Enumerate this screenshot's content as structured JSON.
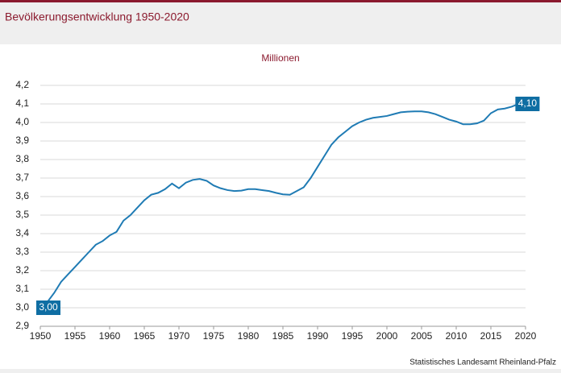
{
  "chart_data": {
    "type": "line",
    "title": "Bevölkerungsentwicklung 1950-2020",
    "subtitle": "Millionen",
    "source": "Statistisches Landesamt Rheinland-Pfalz",
    "x": [
      1950,
      1951,
      1952,
      1953,
      1954,
      1955,
      1956,
      1957,
      1958,
      1959,
      1960,
      1961,
      1962,
      1963,
      1964,
      1965,
      1966,
      1967,
      1968,
      1969,
      1970,
      1971,
      1972,
      1973,
      1974,
      1975,
      1976,
      1977,
      1978,
      1979,
      1980,
      1981,
      1982,
      1983,
      1984,
      1985,
      1986,
      1987,
      1988,
      1989,
      1990,
      1991,
      1992,
      1993,
      1994,
      1995,
      1996,
      1997,
      1998,
      1999,
      2000,
      2001,
      2002,
      2003,
      2004,
      2005,
      2006,
      2007,
      2008,
      2009,
      2010,
      2011,
      2012,
      2013,
      2014,
      2015,
      2016,
      2017,
      2018,
      2019
    ],
    "series": [
      {
        "color": "#1f7bb4",
        "values": [
          3.0,
          3.03,
          3.08,
          3.14,
          3.18,
          3.22,
          3.26,
          3.3,
          3.34,
          3.36,
          3.39,
          3.41,
          3.47,
          3.5,
          3.54,
          3.58,
          3.61,
          3.62,
          3.64,
          3.67,
          3.645,
          3.675,
          3.69,
          3.695,
          3.685,
          3.66,
          3.645,
          3.635,
          3.63,
          3.632,
          3.64,
          3.64,
          3.635,
          3.63,
          3.62,
          3.612,
          3.61,
          3.63,
          3.65,
          3.7,
          3.76,
          3.82,
          3.88,
          3.92,
          3.95,
          3.98,
          4.0,
          4.015,
          4.025,
          4.03,
          4.035,
          4.045,
          4.055,
          4.058,
          4.06,
          4.06,
          4.055,
          4.045,
          4.03,
          4.015,
          4.005,
          3.99,
          3.99,
          3.995,
          4.01,
          4.05,
          4.07,
          4.075,
          4.085,
          4.1
        ],
        "value_labels": [
          "3,00",
          null,
          null,
          null,
          null,
          null,
          null,
          null,
          null,
          null,
          null,
          null,
          null,
          null,
          null,
          null,
          null,
          null,
          null,
          null,
          null,
          null,
          null,
          null,
          null,
          null,
          null,
          null,
          null,
          null,
          null,
          null,
          null,
          null,
          null,
          null,
          null,
          null,
          null,
          null,
          null,
          null,
          null,
          null,
          null,
          null,
          null,
          null,
          null,
          null,
          null,
          null,
          null,
          null,
          null,
          null,
          null,
          null,
          null,
          null,
          null,
          null,
          null,
          null,
          null,
          null,
          null,
          null,
          null,
          "4,10"
        ]
      }
    ],
    "xlim": [
      1950,
      2020
    ],
    "xticks": [
      1950,
      1955,
      1960,
      1965,
      1970,
      1975,
      1980,
      1985,
      1990,
      1995,
      2000,
      2005,
      2010,
      2015,
      2020
    ],
    "ylim": [
      2.9,
      4.2
    ],
    "yticks": [
      {
        "value": 2.9,
        "label": "2,9"
      },
      {
        "value": 3.0,
        "label": "3,0"
      },
      {
        "value": 3.1,
        "label": "3,1"
      },
      {
        "value": 3.2,
        "label": "3,2"
      },
      {
        "value": 3.3,
        "label": "3,3"
      },
      {
        "value": 3.4,
        "label": "3,4"
      },
      {
        "value": 3.5,
        "label": "3,5"
      },
      {
        "value": 3.6,
        "label": "3,6"
      },
      {
        "value": 3.7,
        "label": "3,7"
      },
      {
        "value": 3.8,
        "label": "3,8"
      },
      {
        "value": 3.9,
        "label": "3,9"
      },
      {
        "value": 4.0,
        "label": "4,0"
      },
      {
        "value": 4.1,
        "label": "4,1"
      },
      {
        "value": 4.2,
        "label": "4,2"
      }
    ],
    "grid": true,
    "label_color": "#0f6ea3"
  }
}
